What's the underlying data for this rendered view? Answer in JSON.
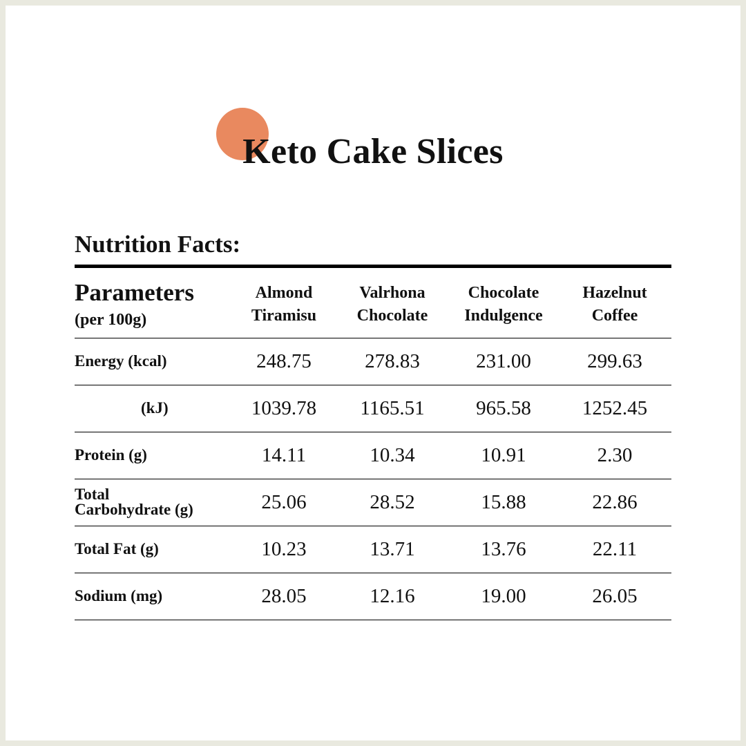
{
  "title": "Keto Cake Slices",
  "section_heading": "Nutrition Facts:",
  "accent_color": "#e9895f",
  "table": {
    "parameter_header": "Parameters",
    "parameter_subheader": "(per 100g)",
    "columns": [
      {
        "line1": "Almond",
        "line2": "Tiramisu"
      },
      {
        "line1": "Valrhona",
        "line2": "Chocolate"
      },
      {
        "line1": "Chocolate",
        "line2": "Indulgence"
      },
      {
        "line1": "Hazelnut",
        "line2": "Coffee"
      }
    ],
    "rows": [
      {
        "label": "Energy (kcal)",
        "values": [
          "248.75",
          "278.83",
          "231.00",
          "299.63"
        ]
      },
      {
        "label": "(kJ)",
        "values": [
          "1039.78",
          "1165.51",
          "965.58",
          "1252.45"
        ]
      },
      {
        "label_line1": "Total",
        "label_line2": "Carbohydrate (g)",
        "values": [
          "25.06",
          "28.52",
          "15.88",
          "22.86"
        ]
      },
      {
        "label": "Protein (g)",
        "values": [
          "14.11",
          "10.34",
          "10.91",
          "2.30"
        ]
      },
      {
        "label": "Total Fat (g)",
        "values": [
          "10.23",
          "13.71",
          "13.76",
          "22.11"
        ]
      },
      {
        "label": "Sodium (mg)",
        "values": [
          "28.05",
          "12.16",
          "19.00",
          "26.05"
        ]
      }
    ]
  }
}
